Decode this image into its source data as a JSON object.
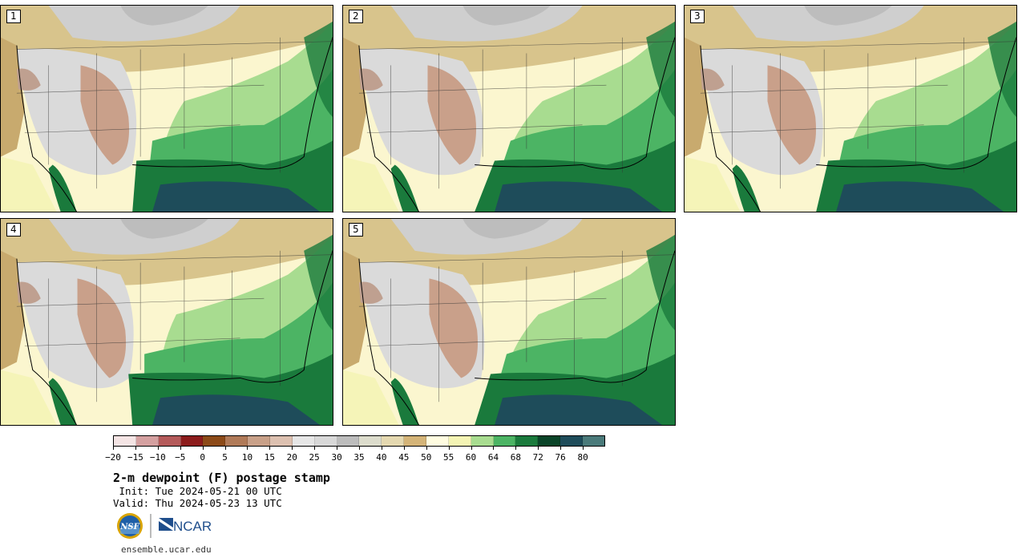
{
  "panels": [
    {
      "id": "p1",
      "label": "1"
    },
    {
      "id": "p2",
      "label": "2"
    },
    {
      "id": "p3",
      "label": "3"
    },
    {
      "id": "p4",
      "label": "4"
    },
    {
      "id": "p5",
      "label": "5"
    }
  ],
  "colorbar": {
    "colors": [
      "#f4e4e4",
      "#d4a0a0",
      "#b45a5a",
      "#8c1c1c",
      "#8c4a18",
      "#b07a58",
      "#c8a088",
      "#dcc0b0",
      "#e6e6e6",
      "#d8d8d8",
      "#bcbcbc",
      "#dcdccc",
      "#e4d8b0",
      "#d4b478",
      "#fffce0",
      "#f4f4b4",
      "#a8dc90",
      "#4cb464",
      "#1a7a3c",
      "#0a4428",
      "#1e4c5a",
      "#4a7a7a"
    ],
    "ticks": [
      "−20",
      "−15",
      "−10",
      "−5",
      "0",
      "5",
      "10",
      "15",
      "20",
      "25",
      "30",
      "35",
      "40",
      "45",
      "50",
      "55",
      "60",
      "64",
      "68",
      "72",
      "76",
      "80"
    ]
  },
  "title": "2-m dewpoint (F) postage stamp",
  "init": " Init: Tue 2024-05-21 00 UTC",
  "valid": "Valid: Thu 2024-05-23 13 UTC",
  "logos": {
    "nsf": "NSF",
    "ncar": "NCAR"
  },
  "url": "ensemble.ucar.edu"
}
